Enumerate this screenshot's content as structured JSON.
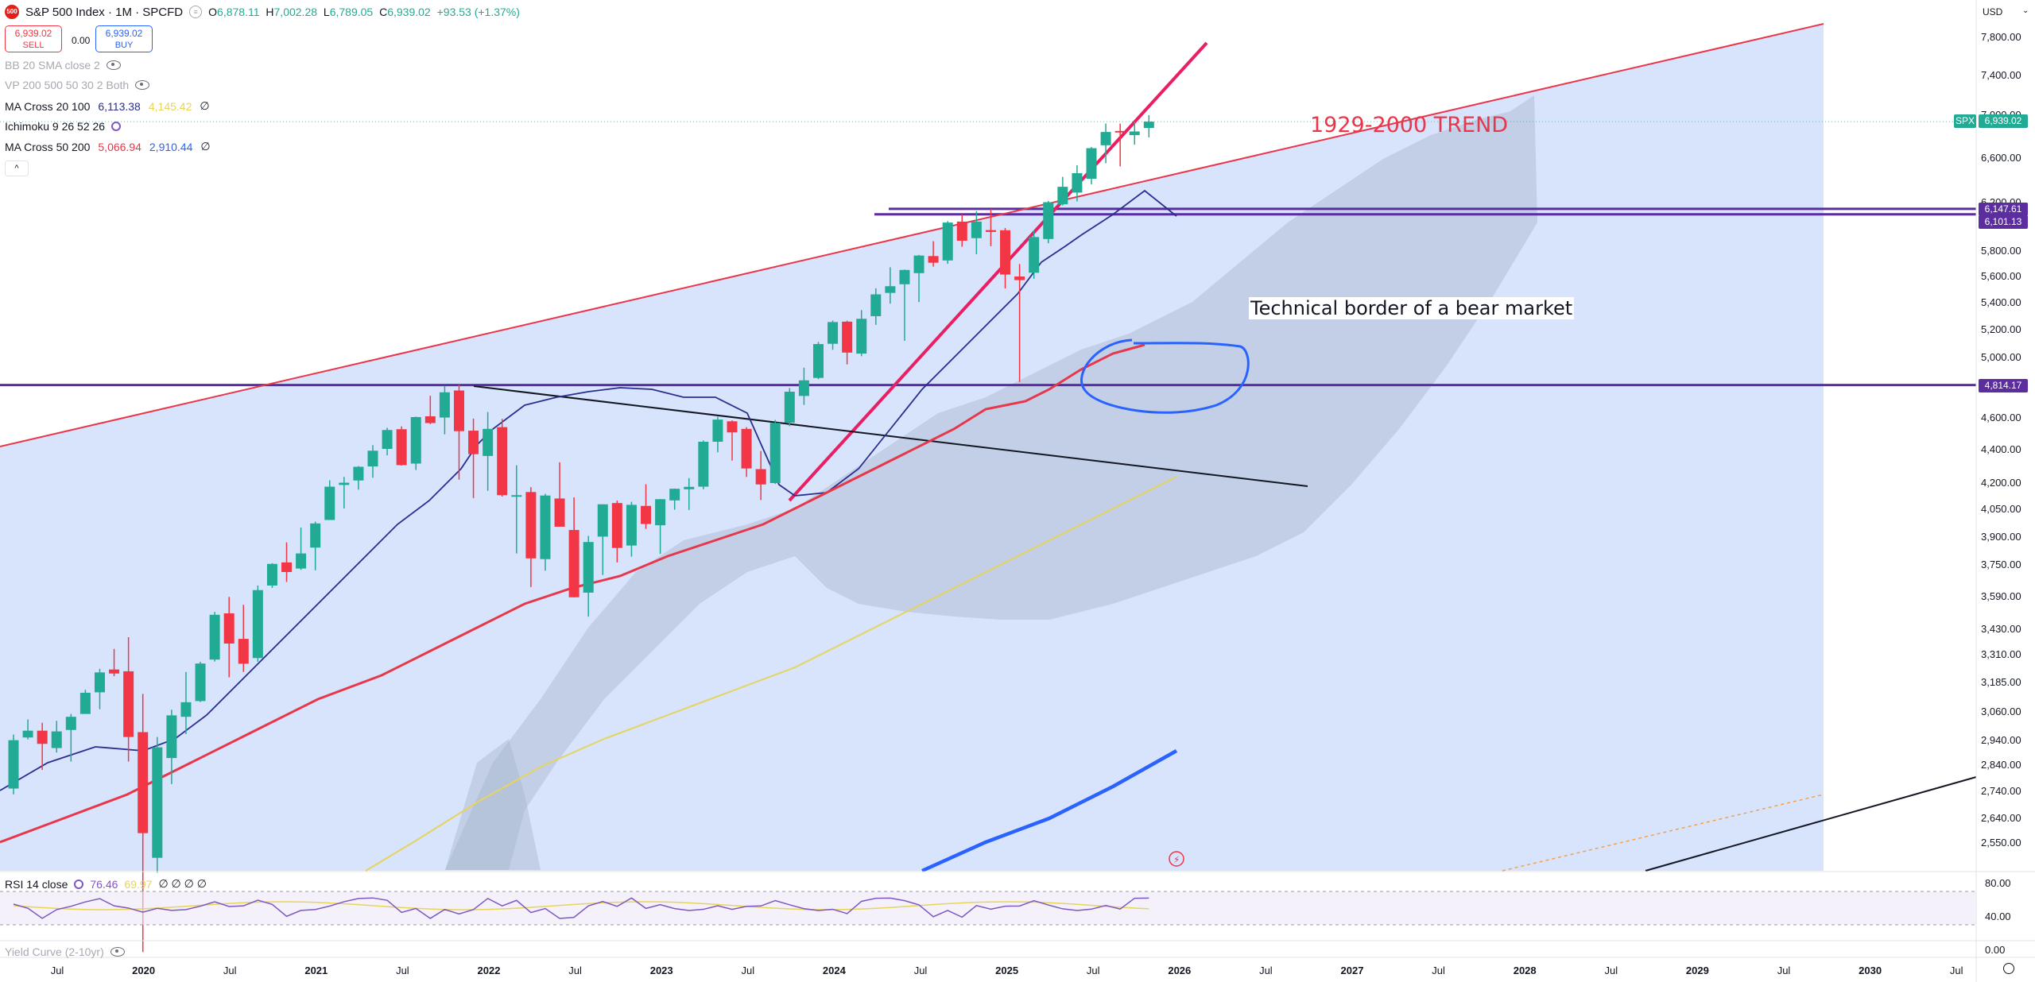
{
  "header": {
    "symbol_badge": "500",
    "title": "S&P 500 Index · 1M · SPCFD",
    "ohlc": {
      "o_label": "O",
      "o": "6,878.11",
      "h_label": "H",
      "h": "7,002.28",
      "l_label": "L",
      "l": "6,789.05",
      "c_label": "C",
      "c": "6,939.02",
      "change": "+93.53 (+1.37%)"
    },
    "sell_price": "6,939.02",
    "sell_label": "SELL",
    "spread": "0.00",
    "buy_price": "6,939.02",
    "buy_label": "BUY",
    "currency": "USD"
  },
  "indicators": [
    {
      "name": "BB 20 SMA close 2",
      "muted": true,
      "values": []
    },
    {
      "name": "VP 200 500 50 30 2 Both",
      "muted": true,
      "values": []
    },
    {
      "name": "MA Cross 20 100",
      "values": [
        {
          "v": "6,113.38",
          "color": "#2a2e8e"
        },
        {
          "v": "4,145.42",
          "color": "#e6d45c"
        },
        {
          "v": "∅",
          "color": "#131722"
        }
      ]
    },
    {
      "name": "Ichimoku 9 26 52 26",
      "values": []
    },
    {
      "name": "MA Cross 50 200",
      "values": [
        {
          "v": "5,066.94",
          "color": "#e8364a"
        },
        {
          "v": "2,910.44",
          "color": "#2962ff"
        },
        {
          "v": "∅",
          "color": "#131722"
        }
      ]
    }
  ],
  "collapse_label": "^",
  "price_axis": {
    "ticks": [
      "7,800.00",
      "7,400.00",
      "7,000.00",
      "6,600.00",
      "6,200.00",
      "5,800.00",
      "5,600.00",
      "5,400.00",
      "5,200.00",
      "5,000.00",
      "4,600.00",
      "4,400.00",
      "4,200.00",
      "4,050.00",
      "3,900.00",
      "3,750.00",
      "3,590.00",
      "3,430.00",
      "3,310.00",
      "3,185.00",
      "3,060.00",
      "2,940.00",
      "2,840.00",
      "2,740.00",
      "2,640.00",
      "2,550.00"
    ],
    "tags": [
      {
        "label": "SPX",
        "value": "6,939.02",
        "color": "#22ab94"
      },
      {
        "value": "6,147.61",
        "color": "#5b2d9e"
      },
      {
        "value": "6,101.13",
        "color": "#5b2d9e"
      },
      {
        "value": "4,814.17",
        "color": "#5b2d9e"
      }
    ]
  },
  "time_axis": [
    {
      "label": "Jul",
      "year": false
    },
    {
      "label": "2020",
      "year": true
    },
    {
      "label": "Jul",
      "year": false
    },
    {
      "label": "2021",
      "year": true
    },
    {
      "label": "Jul",
      "year": false
    },
    {
      "label": "2022",
      "year": true
    },
    {
      "label": "Jul",
      "year": false
    },
    {
      "label": "2023",
      "year": true
    },
    {
      "label": "Jul",
      "year": false
    },
    {
      "label": "2024",
      "year": true
    },
    {
      "label": "Jul",
      "year": false
    },
    {
      "label": "2025",
      "year": true
    },
    {
      "label": "Jul",
      "year": false
    },
    {
      "label": "2026",
      "year": true
    },
    {
      "label": "Jul",
      "year": false
    },
    {
      "label": "2027",
      "year": true
    },
    {
      "label": "Jul",
      "year": false
    },
    {
      "label": "2028",
      "year": true
    },
    {
      "label": "Jul",
      "year": false
    },
    {
      "label": "2029",
      "year": true
    },
    {
      "label": "Jul",
      "year": false
    },
    {
      "label": "2030",
      "year": true
    },
    {
      "label": "Jul",
      "year": false
    }
  ],
  "annotations": {
    "trend_label": "1929-2000 TREND",
    "bear_label": "Technical border of a bear market"
  },
  "rsi": {
    "name": "RSI 14 close",
    "value": "76.46",
    "ma_value": "69.97",
    "extra": "∅ ∅ ∅ ∅",
    "axis": [
      "80.00",
      "40.00"
    ]
  },
  "yield_curve": {
    "name": "Yield Curve (2-10yr)",
    "axis": [
      "0.00"
    ]
  },
  "chart_data": {
    "type": "candlestick",
    "title": "S&P 500 Index · 1M · SPCFD",
    "interval": "1M",
    "y_scale": "log",
    "x_start": "2019-06",
    "ylim": [
      2480,
      8000
    ],
    "candles": [
      {
        "d": "2019-06",
        "o": 2750,
        "h": 2964,
        "l": 2728,
        "c": 2941
      },
      {
        "d": "2019-07",
        "o": 2952,
        "h": 3027,
        "l": 2944,
        "c": 2980
      },
      {
        "d": "2019-08",
        "o": 2980,
        "h": 3013,
        "l": 2822,
        "c": 2926
      },
      {
        "d": "2019-09",
        "o": 2909,
        "h": 3021,
        "l": 2891,
        "c": 2977
      },
      {
        "d": "2019-10",
        "o": 2983,
        "h": 3050,
        "l": 2855,
        "c": 3038
      },
      {
        "d": "2019-11",
        "o": 3050,
        "h": 3154,
        "l": 3050,
        "c": 3141
      },
      {
        "d": "2019-12",
        "o": 3143,
        "h": 3247,
        "l": 3070,
        "c": 3231
      },
      {
        "d": "2020-01",
        "o": 3244,
        "h": 3338,
        "l": 3214,
        "c": 3226
      },
      {
        "d": "2020-02",
        "o": 3236,
        "h": 3393,
        "l": 2855,
        "c": 2954
      },
      {
        "d": "2020-03",
        "o": 2974,
        "h": 3136,
        "l": 2192,
        "c": 2585
      },
      {
        "d": "2020-04",
        "o": 2498,
        "h": 2954,
        "l": 2447,
        "c": 2912
      },
      {
        "d": "2020-05",
        "o": 2869,
        "h": 3068,
        "l": 2767,
        "c": 3044
      },
      {
        "d": "2020-06",
        "o": 3038,
        "h": 3233,
        "l": 2966,
        "c": 3100
      },
      {
        "d": "2020-07",
        "o": 3105,
        "h": 3279,
        "l": 3101,
        "c": 3271
      },
      {
        "d": "2020-08",
        "o": 3289,
        "h": 3514,
        "l": 3280,
        "c": 3500
      },
      {
        "d": "2020-09",
        "o": 3507,
        "h": 3588,
        "l": 3209,
        "c": 3363
      },
      {
        "d": "2020-10",
        "o": 3385,
        "h": 3549,
        "l": 3233,
        "c": 3270
      },
      {
        "d": "2020-11",
        "o": 3296,
        "h": 3645,
        "l": 3279,
        "c": 3622
      },
      {
        "d": "2020-12",
        "o": 3645,
        "h": 3760,
        "l": 3633,
        "c": 3756
      },
      {
        "d": "2021-01",
        "o": 3764,
        "h": 3870,
        "l": 3663,
        "c": 3714
      },
      {
        "d": "2021-02",
        "o": 3732,
        "h": 3950,
        "l": 3725,
        "c": 3811
      },
      {
        "d": "2021-03",
        "o": 3842,
        "h": 3983,
        "l": 3723,
        "c": 3973
      },
      {
        "d": "2021-04",
        "o": 3992,
        "h": 4218,
        "l": 3992,
        "c": 4181
      },
      {
        "d": "2021-05",
        "o": 4191,
        "h": 4238,
        "l": 4056,
        "c": 4204
      },
      {
        "d": "2021-06",
        "o": 4217,
        "h": 4302,
        "l": 4164,
        "c": 4298
      },
      {
        "d": "2021-07",
        "o": 4300,
        "h": 4429,
        "l": 4233,
        "c": 4395
      },
      {
        "d": "2021-08",
        "o": 4406,
        "h": 4537,
        "l": 4367,
        "c": 4523
      },
      {
        "d": "2021-09",
        "o": 4528,
        "h": 4546,
        "l": 4305,
        "c": 4308
      },
      {
        "d": "2021-10",
        "o": 4317,
        "h": 4608,
        "l": 4279,
        "c": 4605
      },
      {
        "d": "2021-11",
        "o": 4610,
        "h": 4743,
        "l": 4560,
        "c": 4567
      },
      {
        "d": "2021-12",
        "o": 4602,
        "h": 4808,
        "l": 4496,
        "c": 4766
      },
      {
        "d": "2022-01",
        "o": 4778,
        "h": 4818,
        "l": 4222,
        "c": 4516
      },
      {
        "d": "2022-02",
        "o": 4519,
        "h": 4595,
        "l": 4115,
        "c": 4374
      },
      {
        "d": "2022-03",
        "o": 4363,
        "h": 4637,
        "l": 4157,
        "c": 4530
      },
      {
        "d": "2022-04",
        "o": 4541,
        "h": 4593,
        "l": 4124,
        "c": 4132
      },
      {
        "d": "2022-05",
        "o": 4130,
        "h": 4307,
        "l": 3811,
        "c": 4132
      },
      {
        "d": "2022-06",
        "o": 4150,
        "h": 4178,
        "l": 3637,
        "c": 3785
      },
      {
        "d": "2022-07",
        "o": 3781,
        "h": 4140,
        "l": 3721,
        "c": 4130
      },
      {
        "d": "2022-08",
        "o": 4113,
        "h": 4325,
        "l": 3955,
        "c": 3955
      },
      {
        "d": "2022-09",
        "o": 3937,
        "h": 4119,
        "l": 3585,
        "c": 3586
      },
      {
        "d": "2022-10",
        "o": 3609,
        "h": 3905,
        "l": 3491,
        "c": 3872
      },
      {
        "d": "2022-11",
        "o": 3901,
        "h": 4080,
        "l": 3699,
        "c": 4080
      },
      {
        "d": "2022-12",
        "o": 4087,
        "h": 4101,
        "l": 3764,
        "c": 3840
      },
      {
        "d": "2023-01",
        "o": 3853,
        "h": 4094,
        "l": 3794,
        "c": 4077
      },
      {
        "d": "2023-02",
        "o": 4071,
        "h": 4195,
        "l": 3943,
        "c": 3970
      },
      {
        "d": "2023-03",
        "o": 3963,
        "h": 4110,
        "l": 3809,
        "c": 4109
      },
      {
        "d": "2023-04",
        "o": 4102,
        "h": 4170,
        "l": 4049,
        "c": 4169
      },
      {
        "d": "2023-05",
        "o": 4166,
        "h": 4231,
        "l": 4048,
        "c": 4180
      },
      {
        "d": "2023-06",
        "o": 4181,
        "h": 4458,
        "l": 4166,
        "c": 4450
      },
      {
        "d": "2023-07",
        "o": 4450,
        "h": 4607,
        "l": 4385,
        "c": 4589
      },
      {
        "d": "2023-08",
        "o": 4578,
        "h": 4584,
        "l": 4335,
        "c": 4508
      },
      {
        "d": "2023-09",
        "o": 4530,
        "h": 4541,
        "l": 4238,
        "c": 4288
      },
      {
        "d": "2023-10",
        "o": 4284,
        "h": 4393,
        "l": 4104,
        "c": 4194
      },
      {
        "d": "2023-11",
        "o": 4202,
        "h": 4587,
        "l": 4197,
        "c": 4568
      },
      {
        "d": "2023-12",
        "o": 4569,
        "h": 4794,
        "l": 4547,
        "c": 4770
      },
      {
        "d": "2024-01",
        "o": 4742,
        "h": 4932,
        "l": 4683,
        "c": 4846
      },
      {
        "d": "2024-02",
        "o": 4862,
        "h": 5111,
        "l": 4854,
        "c": 5096
      },
      {
        "d": "2024-03",
        "o": 5098,
        "h": 5265,
        "l": 5056,
        "c": 5254
      },
      {
        "d": "2024-04",
        "o": 5257,
        "h": 5264,
        "l": 4954,
        "c": 5036
      },
      {
        "d": "2024-05",
        "o": 5029,
        "h": 5342,
        "l": 5011,
        "c": 5278
      },
      {
        "d": "2024-06",
        "o": 5297,
        "h": 5506,
        "l": 5234,
        "c": 5460
      },
      {
        "d": "2024-07",
        "o": 5471,
        "h": 5669,
        "l": 5390,
        "c": 5522
      },
      {
        "d": "2024-08",
        "o": 5537,
        "h": 5651,
        "l": 5119,
        "c": 5648
      },
      {
        "d": "2024-09",
        "o": 5623,
        "h": 5767,
        "l": 5402,
        "c": 5762
      },
      {
        "d": "2024-10",
        "o": 5758,
        "h": 5878,
        "l": 5674,
        "c": 5705
      },
      {
        "d": "2024-11",
        "o": 5723,
        "h": 6044,
        "l": 5696,
        "c": 6032
      },
      {
        "d": "2024-12",
        "o": 6040,
        "h": 6100,
        "l": 5833,
        "c": 5882
      },
      {
        "d": "2025-01",
        "o": 5903,
        "h": 6128,
        "l": 5773,
        "c": 6040
      },
      {
        "d": "2025-02",
        "o": 5969,
        "h": 6147,
        "l": 5837,
        "c": 5954
      },
      {
        "d": "2025-03",
        "o": 5968,
        "h": 5986,
        "l": 5505,
        "c": 5612
      },
      {
        "d": "2025-04",
        "o": 5597,
        "h": 5695,
        "l": 4835,
        "c": 5569
      },
      {
        "d": "2025-05",
        "o": 5626,
        "h": 5968,
        "l": 5579,
        "c": 5912
      },
      {
        "d": "2025-06",
        "o": 5896,
        "h": 6215,
        "l": 5861,
        "c": 6205
      },
      {
        "d": "2025-07",
        "o": 6187,
        "h": 6427,
        "l": 6177,
        "c": 6339
      },
      {
        "d": "2025-08",
        "o": 6288,
        "h": 6532,
        "l": 6212,
        "c": 6460
      },
      {
        "d": "2025-09",
        "o": 6410,
        "h": 6699,
        "l": 6360,
        "c": 6688
      },
      {
        "d": "2025-10",
        "o": 6715,
        "h": 6920,
        "l": 6550,
        "c": 6840
      },
      {
        "d": "2025-11",
        "o": 6850,
        "h": 6920,
        "l": 6521,
        "c": 6849
      },
      {
        "d": "2025-12",
        "o": 6810,
        "h": 6940,
        "l": 6720,
        "c": 6845
      },
      {
        "d": "2026-01",
        "o": 6878.11,
        "h": 7002.28,
        "l": 6789.05,
        "c": 6939.02
      }
    ],
    "horizontal_levels": [
      6147.61,
      6101.13,
      4814.17
    ],
    "rsi_latest": 76.46,
    "rsi_ma_latest": 69.97
  }
}
